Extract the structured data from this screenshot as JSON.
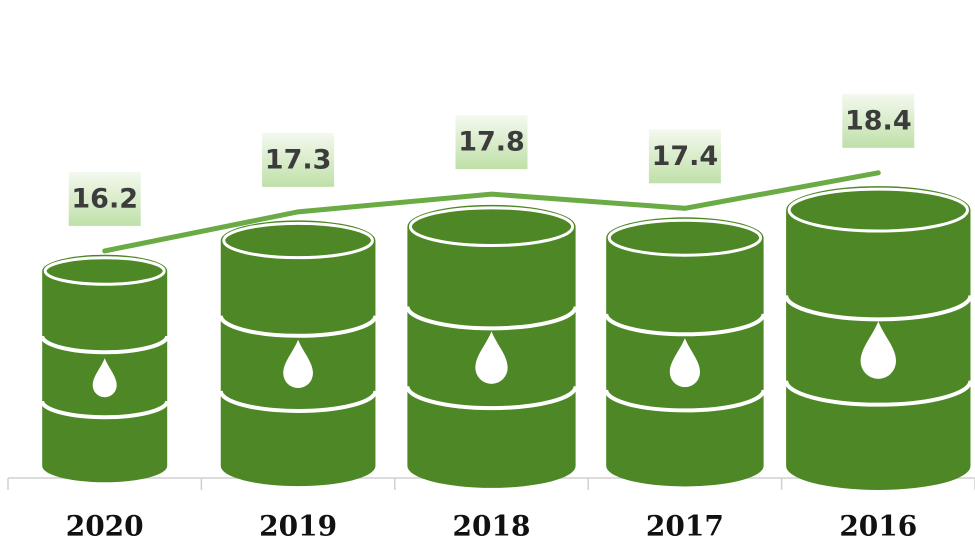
{
  "chart_data": {
    "type": "pictograph",
    "categories": [
      "2020",
      "2019",
      "2018",
      "2017",
      "2016"
    ],
    "values": [
      16.2,
      17.3,
      17.8,
      17.4,
      18.4
    ],
    "color": "#4e8725",
    "line_color": "#6aab45"
  }
}
